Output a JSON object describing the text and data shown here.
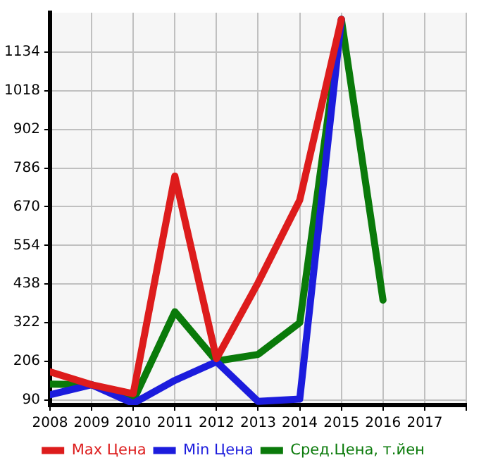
{
  "chart_data": {
    "type": "line",
    "x": [
      2008,
      2009,
      2010,
      2011,
      2012,
      2013,
      2014,
      2015,
      2016
    ],
    "xlim": [
      2008,
      2018
    ],
    "xticks": [
      2008,
      2009,
      2010,
      2011,
      2012,
      2013,
      2014,
      2015,
      2016,
      2017,
      {
        "value": 2018,
        "label": null
      }
    ],
    "ylim": [
      75,
      1252
    ],
    "yticks": [
      90,
      206,
      322,
      438,
      554,
      670,
      786,
      902,
      1018,
      1134
    ],
    "series": [
      {
        "name": "Max Цена",
        "color": "#dd1c1c",
        "values": [
          175,
          136,
          109,
          762,
          214,
          442,
          690,
          1232,
          null
        ]
      },
      {
        "name": "Min Цена",
        "color": "#1c1cdd",
        "values": [
          106,
          136,
          80,
          149,
          205,
          86,
          93,
          1232,
          null
        ]
      },
      {
        "name": "Сред.Цена, т.йен",
        "color": "#0a7a0a",
        "values": [
          138,
          136,
          88,
          355,
          207,
          227,
          322,
          1232,
          390
        ]
      }
    ],
    "grid": true,
    "legend": "bottom",
    "marker": "none",
    "line_style": "solid"
  }
}
